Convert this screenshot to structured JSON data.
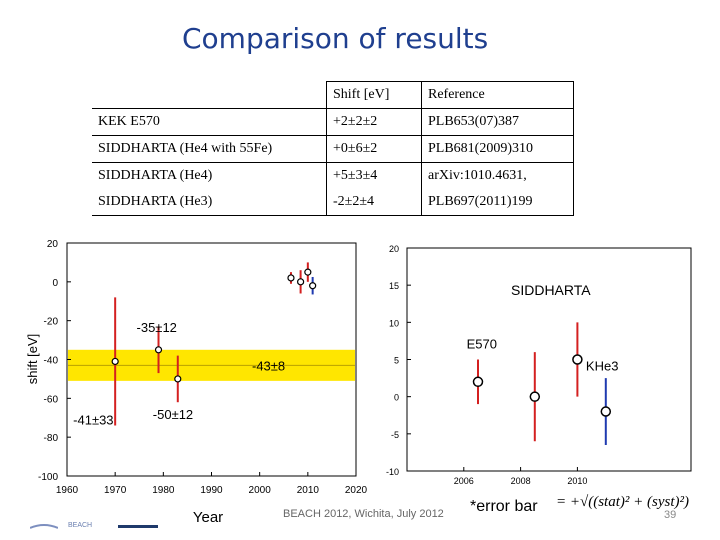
{
  "title": "Comparison of results",
  "table": {
    "headers": [
      "",
      "Shift [eV]",
      "Reference"
    ],
    "rows": [
      {
        "name": "KEK E570",
        "shift": "+2±2±2",
        "ref": "PLB653(07)387"
      },
      {
        "name": "SIDDHARTA (He4 with 55Fe)",
        "shift": "+0±6±2",
        "ref": "PLB681(2009)310"
      },
      {
        "name": "SIDDHARTA (He4)",
        "shift": "+5±3±4",
        "ref": "arXiv:1010.4631,"
      },
      {
        "name": "SIDDHARTA (He3)",
        "shift": "-2±2±4",
        "ref": "PLB697(2011)199"
      }
    ]
  },
  "footer": "BEACH 2012, Wichita, July 2012",
  "error_note": "*error bar",
  "formula": "= +√((stat)² + (syst)²)",
  "page_number": "39",
  "logo_text": "BEACH",
  "chart_data": [
    {
      "type": "scatter",
      "xlabel": "Year",
      "ylabel": "shift [eV]",
      "xlim": [
        1960,
        2020
      ],
      "ylim": [
        -100,
        20
      ],
      "xticks": [
        1960,
        1970,
        1980,
        1990,
        2000,
        2010,
        2020
      ],
      "yticks": [
        20,
        0,
        -20,
        -40,
        -60,
        -80,
        -100
      ],
      "band": {
        "center": -43,
        "err": 8,
        "label": "-43±8",
        "color": "#ffe600"
      },
      "points": [
        {
          "x": 1970,
          "y": -41,
          "err": 33,
          "label": "-41±33",
          "color": "#d42020"
        },
        {
          "x": 1979,
          "y": -35,
          "err": 12,
          "label": "-35±12",
          "color": "#d42020"
        },
        {
          "x": 1983,
          "y": -50,
          "err": 12,
          "label": "-50±12",
          "color": "#d42020"
        },
        {
          "x": 2006.5,
          "y": 2,
          "err": 3,
          "color": "#d42020"
        },
        {
          "x": 2008.5,
          "y": 0,
          "err": 6,
          "color": "#d42020"
        },
        {
          "x": 2010,
          "y": 5,
          "err": 5,
          "color": "#d42020"
        },
        {
          "x": 2011,
          "y": -2,
          "err": 4.5,
          "color": "#1f3ab0"
        }
      ]
    },
    {
      "type": "scatter",
      "title": "SIDDHARTA",
      "xlim": [
        2004,
        2014
      ],
      "ylim": [
        -10,
        20
      ],
      "xticks": [
        2006,
        2008,
        2010
      ],
      "yticks": [
        20,
        15,
        10,
        5,
        0,
        -5,
        -10
      ],
      "annotations": [
        {
          "text": "E570",
          "x": 2006.1,
          "y": 6.5
        },
        {
          "text": "KHe3",
          "x": 2010.3,
          "y": 3.5
        }
      ],
      "points": [
        {
          "x": 2006.5,
          "y": 2,
          "err": 3,
          "color": "#d42020"
        },
        {
          "x": 2008.5,
          "y": 0,
          "err": 6,
          "color": "#d42020"
        },
        {
          "x": 2010,
          "y": 5,
          "err": 5,
          "color": "#d42020"
        },
        {
          "x": 2011,
          "y": -2,
          "err": 4.5,
          "color": "#1f3ab0"
        }
      ]
    }
  ]
}
